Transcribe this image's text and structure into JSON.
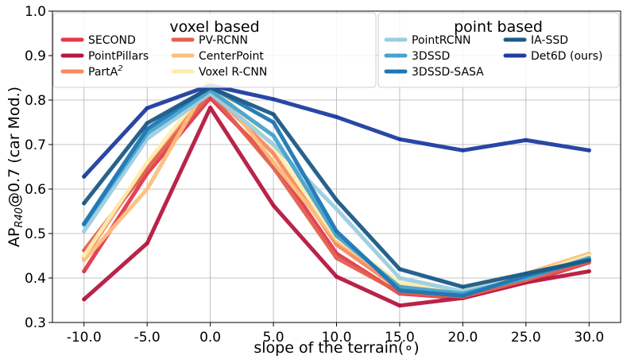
{
  "chart_data": {
    "type": "line",
    "title": "",
    "xlabel": "slope of the terrain(∘)",
    "ylabel_main": "AP",
    "ylabel_sub": "R40",
    "ylabel_rest": "@0.7 (car Mod.)",
    "x": [
      -10,
      -5,
      0,
      5,
      10,
      15,
      20,
      25,
      30
    ],
    "x_ticks": [
      "-10.0",
      "-5.0",
      "0.0",
      "5.0",
      "10.0",
      "15.0",
      "20.0",
      "25.0",
      "30.0"
    ],
    "xlim": [
      -12.5,
      32.5
    ],
    "ylim": [
      0.3,
      1.0
    ],
    "y_ticks": [
      "0.3",
      "0.4",
      "0.5",
      "0.6",
      "0.7",
      "0.8",
      "0.9",
      "1.0"
    ],
    "grid": true,
    "legends": [
      {
        "title": "voxel based",
        "position": "top-left"
      },
      {
        "title": "point based",
        "position": "top-right"
      }
    ],
    "series": [
      {
        "name": "SECOND",
        "name_suffix": "",
        "group": 0,
        "color": "#e03a4c",
        "values": [
          0.415,
          0.635,
          0.805,
          0.66,
          0.455,
          0.365,
          0.355,
          0.39,
          0.435
        ]
      },
      {
        "name": "PointPillars",
        "name_suffix": "",
        "group": 0,
        "color": "#b5183f",
        "values": [
          0.352,
          0.478,
          0.783,
          0.563,
          0.403,
          0.338,
          0.355,
          0.39,
          0.415
        ]
      },
      {
        "name": "PartA",
        "name_suffix": "2",
        "group": 0,
        "color": "#f78a60",
        "values": [
          0.445,
          0.655,
          0.822,
          0.68,
          0.475,
          0.375,
          0.36,
          0.405,
          0.44
        ]
      },
      {
        "name": "PV-RCNN",
        "name_suffix": "",
        "group": 0,
        "color": "#e2604e",
        "values": [
          0.462,
          0.645,
          0.815,
          0.648,
          0.445,
          0.368,
          0.358,
          0.395,
          0.438
        ]
      },
      {
        "name": "CenterPoint",
        "name_suffix": "",
        "group": 0,
        "color": "#fbc07e",
        "values": [
          0.44,
          0.6,
          0.845,
          0.66,
          0.485,
          0.385,
          0.365,
          0.41,
          0.455
        ]
      },
      {
        "name": "Voxel R-CNN",
        "name_suffix": "",
        "group": 0,
        "color": "#fdeeb0",
        "values": [
          0.45,
          0.66,
          0.84,
          0.695,
          0.49,
          0.39,
          0.37,
          0.405,
          0.45
        ]
      },
      {
        "name": "PointRCNN",
        "name_suffix": "",
        "group": 1,
        "color": "#9ccde2",
        "values": [
          0.505,
          0.713,
          0.815,
          0.7,
          0.555,
          0.4,
          0.37,
          0.4,
          0.445
        ]
      },
      {
        "name": "3DSSD",
        "name_suffix": "",
        "group": 1,
        "color": "#47a3ce",
        "values": [
          0.52,
          0.725,
          0.822,
          0.72,
          0.495,
          0.38,
          0.365,
          0.4,
          0.445
        ]
      },
      {
        "name": "3DSSD-SASA",
        "name_suffix": "",
        "group": 1,
        "color": "#1f77b4",
        "values": [
          0.522,
          0.735,
          0.83,
          0.75,
          0.505,
          0.372,
          0.36,
          0.405,
          0.44
        ]
      },
      {
        "name": "IA-SSD",
        "name_suffix": "",
        "group": 1,
        "color": "#1b5a86",
        "values": [
          0.568,
          0.748,
          0.828,
          0.768,
          0.575,
          0.42,
          0.38,
          0.41,
          0.44
        ]
      },
      {
        "name": "Det6D (ours)",
        "name_suffix": "",
        "group": 1,
        "color": "#1f3da0",
        "values": [
          0.628,
          0.782,
          0.833,
          0.802,
          0.762,
          0.712,
          0.687,
          0.71,
          0.687
        ]
      }
    ]
  }
}
